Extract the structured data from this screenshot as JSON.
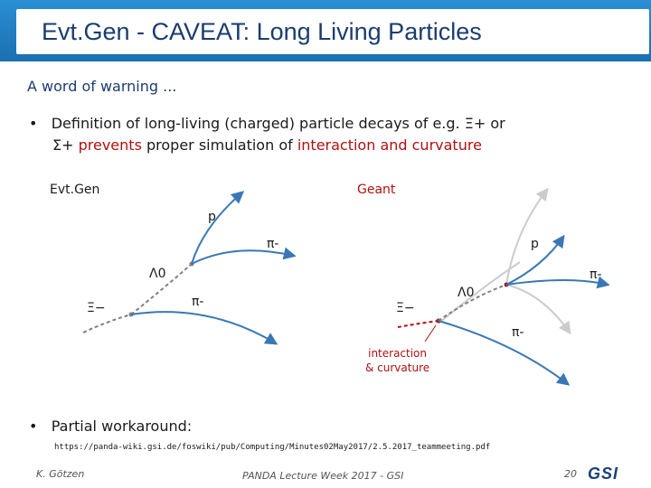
{
  "header": {
    "title": "Evt.Gen - CAVEAT: Long Living Particles"
  },
  "intro": "A word of warning ...",
  "bullet1": {
    "marker": "•",
    "line1": "Definition of long-living (charged) particle decays of e.g. Ξ+ or",
    "line2_start": "Σ+ ",
    "line2_red1": "prevents",
    "line2_mid": " proper simulation of ",
    "line2_red2": "interaction and curvature"
  },
  "diagram": {
    "evtgen_label": "Evt.Gen",
    "geant_label": "Geant",
    "evtgen_p": "p",
    "evtgen_pi1": "π-",
    "evtgen_lambda": "Λ0",
    "evtgen_pi2": "π-",
    "evtgen_xi": "Ξ−",
    "geant_p": "p",
    "geant_pi1": "π-",
    "geant_lambda": "Λ0",
    "geant_xi": "Ξ−",
    "geant_pi2": "π-",
    "annotation_line1": "interaction",
    "annotation_line2": "& curvature"
  },
  "bullet2": {
    "marker": "•",
    "text": "Partial workaround:"
  },
  "url": "https://panda-wiki.gsi.de/foswiki/pub/Computing/Minutes02May2017/2.5.2017_teammeeting.pdf",
  "footer": {
    "author": "K. Götzen",
    "event": "PANDA Lecture Week 2017 - GSI",
    "page": "20",
    "logo": "GSI"
  },
  "colors": {
    "title_bar": "#1b6fb0",
    "title_text": "#1a3d6e",
    "accent_red": "#b01010",
    "track_blue": "#3a78b5",
    "track_grey": "#808080"
  }
}
